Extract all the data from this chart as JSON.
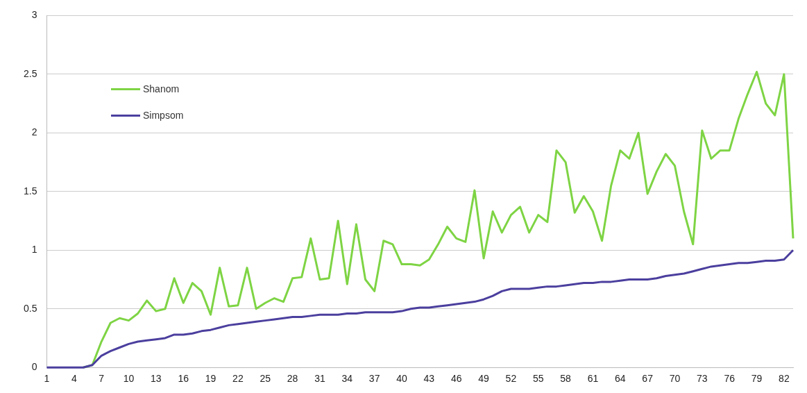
{
  "chart_data": {
    "type": "line",
    "categories": [
      "1",
      null,
      null,
      "4",
      null,
      null,
      "7",
      null,
      null,
      "10",
      null,
      null,
      "13",
      null,
      null,
      "16",
      null,
      null,
      "19",
      null,
      null,
      "22",
      null,
      null,
      "25",
      null,
      null,
      "28",
      null,
      null,
      "31",
      null,
      null,
      "34",
      null,
      null,
      "37",
      null,
      null,
      "40",
      null,
      null,
      "43",
      null,
      null,
      "46",
      null,
      null,
      "49",
      null,
      null,
      "52",
      null,
      null,
      "55",
      null,
      null,
      "58",
      null,
      null,
      "61",
      null,
      null,
      "64",
      null,
      null,
      "67",
      null,
      null,
      "70",
      null,
      null,
      "73",
      null,
      null,
      "76",
      null,
      null,
      "79",
      null,
      null,
      "82",
      null
    ],
    "series": [
      {
        "name": "Shanom",
        "color": "#7ed444",
        "values": [
          null,
          null,
          null,
          null,
          0,
          0.02,
          0.22,
          0.38,
          0.42,
          0.4,
          0.46,
          0.57,
          0.48,
          0.5,
          0.76,
          0.55,
          0.72,
          0.65,
          0.45,
          0.85,
          0.52,
          0.53,
          0.85,
          0.5,
          0.55,
          0.59,
          0.56,
          0.76,
          0.77,
          1.1,
          0.75,
          0.76,
          1.25,
          0.71,
          1.22,
          0.75,
          0.65,
          1.08,
          1.05,
          0.88,
          0.88,
          0.87,
          0.92,
          1.05,
          1.2,
          1.1,
          1.07,
          1.51,
          0.93,
          1.33,
          1.15,
          1.3,
          1.37,
          1.15,
          1.3,
          1.24,
          1.85,
          1.75,
          1.32,
          1.46,
          1.33,
          1.08,
          1.55,
          1.85,
          1.78,
          2.0,
          1.48,
          1.67,
          1.82,
          1.72,
          1.33,
          1.05,
          2.02,
          1.78,
          1.85,
          1.85,
          2.12,
          2.33,
          2.52,
          2.25,
          2.15,
          2.5,
          1.1
        ]
      },
      {
        "name": "Simpsom",
        "color": "#4b3f9e",
        "values": [
          0,
          0,
          0,
          0,
          0,
          0.02,
          0.1,
          0.14,
          0.17,
          0.2,
          0.22,
          0.23,
          0.24,
          0.25,
          0.28,
          0.28,
          0.29,
          0.31,
          0.32,
          0.34,
          0.36,
          0.37,
          0.38,
          0.39,
          0.4,
          0.41,
          0.42,
          0.43,
          0.43,
          0.44,
          0.45,
          0.45,
          0.45,
          0.46,
          0.46,
          0.47,
          0.47,
          0.47,
          0.47,
          0.48,
          0.5,
          0.51,
          0.51,
          0.52,
          0.53,
          0.54,
          0.55,
          0.56,
          0.58,
          0.61,
          0.65,
          0.67,
          0.67,
          0.67,
          0.68,
          0.69,
          0.69,
          0.7,
          0.71,
          0.72,
          0.72,
          0.73,
          0.73,
          0.74,
          0.75,
          0.75,
          0.75,
          0.76,
          0.78,
          0.79,
          0.8,
          0.82,
          0.84,
          0.86,
          0.87,
          0.88,
          0.89,
          0.89,
          0.9,
          0.91,
          0.91,
          0.92,
          1.0
        ]
      }
    ],
    "ylim": [
      0,
      3
    ],
    "yticks": [
      0,
      0.5,
      1,
      1.5,
      2,
      2.5,
      3
    ],
    "grid": "y",
    "legend": "top left",
    "marker": "none",
    "line_style": "solid"
  }
}
